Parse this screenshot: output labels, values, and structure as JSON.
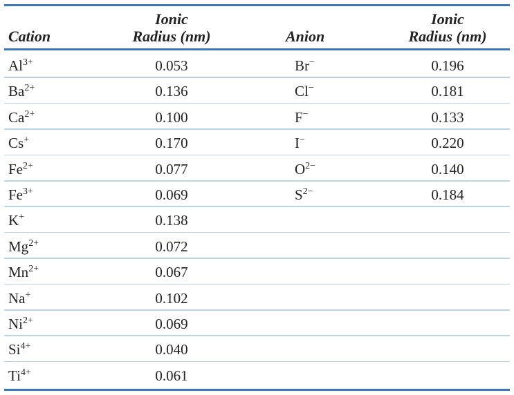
{
  "table": {
    "headers": {
      "cation": "Cation",
      "cation_radius": [
        "Ionic",
        "Radius (nm)"
      ],
      "anion": "Anion",
      "anion_radius": [
        "Ionic",
        "Radius (nm)"
      ]
    },
    "cations": [
      {
        "symbol": "Al",
        "charge": "3+",
        "radius": "0.053"
      },
      {
        "symbol": "Ba",
        "charge": "2+",
        "radius": "0.136"
      },
      {
        "symbol": "Ca",
        "charge": "2+",
        "radius": "0.100"
      },
      {
        "symbol": "Cs",
        "charge": "+",
        "radius": "0.170"
      },
      {
        "symbol": "Fe",
        "charge": "2+",
        "radius": "0.077"
      },
      {
        "symbol": "Fe",
        "charge": "3+",
        "radius": "0.069"
      },
      {
        "symbol": "K",
        "charge": "+",
        "radius": "0.138"
      },
      {
        "symbol": "Mg",
        "charge": "2+",
        "radius": "0.072"
      },
      {
        "symbol": "Mn",
        "charge": "2+",
        "radius": "0.067"
      },
      {
        "symbol": "Na",
        "charge": "+",
        "radius": "0.102"
      },
      {
        "symbol": "Ni",
        "charge": "2+",
        "radius": "0.069"
      },
      {
        "symbol": "Si",
        "charge": "4+",
        "radius": "0.040"
      },
      {
        "symbol": "Ti",
        "charge": "4+",
        "radius": "0.061"
      }
    ],
    "anions": [
      {
        "symbol": "Br",
        "charge": "−",
        "radius": "0.196"
      },
      {
        "symbol": "Cl",
        "charge": "−",
        "radius": "0.181"
      },
      {
        "symbol": "F",
        "charge": "−",
        "radius": "0.133"
      },
      {
        "symbol": "I",
        "charge": "−",
        "radius": "0.220"
      },
      {
        "symbol": "O",
        "charge": "2−",
        "radius": "0.140"
      },
      {
        "symbol": "S",
        "charge": "2−",
        "radius": "0.184"
      }
    ]
  }
}
